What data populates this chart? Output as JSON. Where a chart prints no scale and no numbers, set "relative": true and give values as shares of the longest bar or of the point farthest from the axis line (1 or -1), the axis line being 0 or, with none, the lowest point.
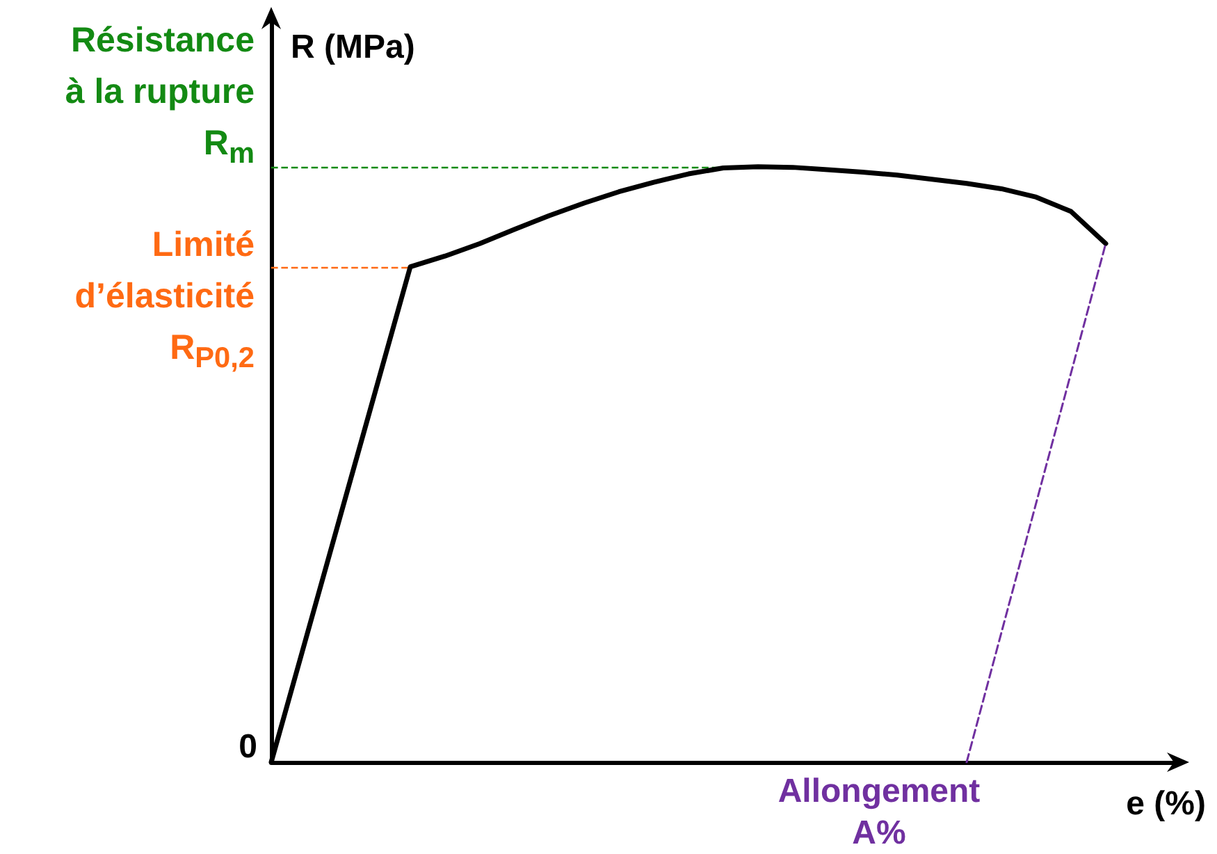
{
  "chart_data": {
    "type": "line",
    "relative": true,
    "ylabel": "R (MPa)",
    "xlabel": "e (%)",
    "grid": false,
    "marker": "none",
    "categories": [
      null,
      null,
      null,
      null,
      null,
      null,
      null,
      null,
      null,
      null,
      null,
      null,
      null,
      null,
      null,
      null,
      null,
      null,
      null,
      null,
      null,
      null,
      null,
      null,
      null,
      null,
      null
    ],
    "series": [
      {
        "color": "#000000",
        "line_style": "solid",
        "values": [
          0,
          0.208,
          0.416,
          0.624,
          0.832,
          0.85,
          0.871,
          0.895,
          0.918,
          0.939,
          0.958,
          0.974,
          0.988,
          0.998,
          1,
          0.999,
          0.995,
          0.991,
          0.986,
          0.979,
          0.972,
          0.963,
          0.949,
          0.925,
          0.871,
          null,
          null
        ]
      },
      {
        "color": "#7030a0",
        "line_style": "dashed",
        "values": [
          null,
          null,
          null,
          null,
          null,
          null,
          null,
          null,
          null,
          null,
          null,
          null,
          null,
          null,
          null,
          null,
          null,
          null,
          null,
          null,
          0,
          null,
          null,
          null,
          0.871,
          null,
          null
        ]
      }
    ],
    "ref_lines": [
      {
        "axis": "y",
        "value": 1,
        "label": "Résistance\nà la rupture\nR$_{m}$",
        "color": "#138a13",
        "line_style": "dashed"
      },
      {
        "axis": "y",
        "value": 0.832,
        "label": "Limité\nd’élasticité\nR$_{P0,2}$",
        "color": "#ff6a13",
        "line_style": "dashed"
      }
    ],
    "annotations": [
      "Allongement\nA%",
      "0"
    ]
  }
}
